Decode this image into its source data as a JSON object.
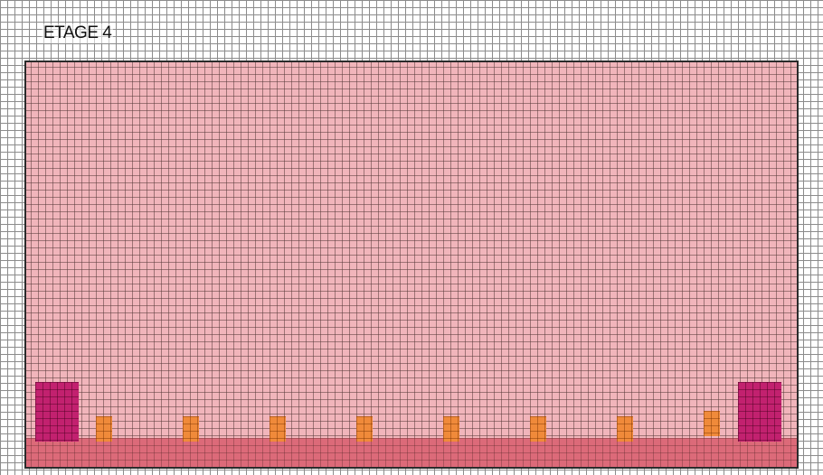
{
  "floor": {
    "title": "ETAGE 4"
  },
  "colors": {
    "paper_grid": "#8c8c8c",
    "floor_fill": "#f1b5bb",
    "floor_border": "#2b2b2b",
    "base_band": "#dc6a79",
    "large_block": "#c2216f",
    "pillar": "#f08a3a"
  },
  "elements": {
    "large_blocks": 2,
    "pillars": 8
  }
}
